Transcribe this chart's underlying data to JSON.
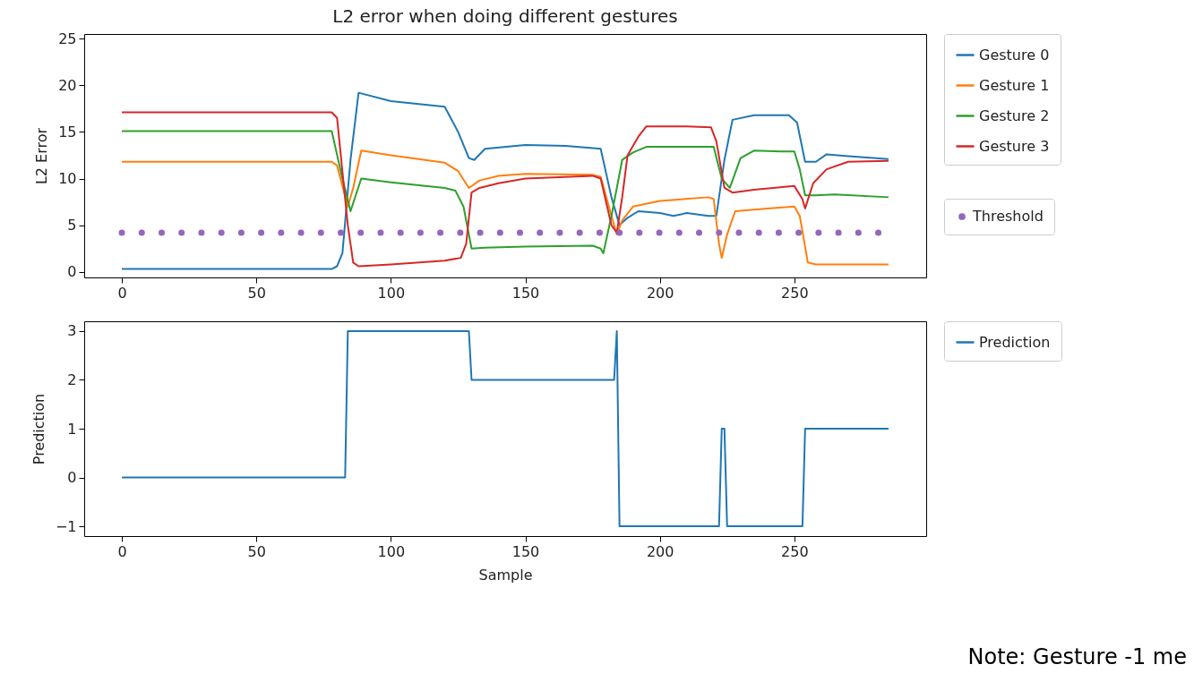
{
  "chart_data": [
    {
      "type": "line",
      "title": "L2 error when doing different gestures",
      "ylabel": "L2 Error",
      "xlim": [
        -14,
        299
      ],
      "ylim": [
        -0.6,
        25.5
      ],
      "xticks": [
        0,
        50,
        100,
        150,
        200,
        250
      ],
      "yticks": [
        0,
        5,
        10,
        15,
        20,
        25
      ],
      "grid": false,
      "legend": "right",
      "series": [
        {
          "name": "Gesture 0",
          "color": "#1f77b4",
          "x": [
            0,
            40,
            78,
            80,
            82,
            85,
            88,
            100,
            120,
            125,
            129,
            131,
            135,
            150,
            165,
            178,
            182,
            185,
            188,
            192,
            200,
            205,
            210,
            218,
            221,
            224,
            227,
            235,
            248,
            251,
            254,
            258,
            262,
            270,
            285
          ],
          "values": [
            0.3,
            0.3,
            0.3,
            0.6,
            2,
            12,
            19.2,
            18.3,
            17.7,
            15,
            12.2,
            12,
            13.2,
            13.6,
            13.5,
            13.2,
            8,
            5,
            5.8,
            6.5,
            6.3,
            6,
            6.3,
            6,
            6,
            12,
            16.3,
            16.8,
            16.8,
            16,
            11.8,
            11.8,
            12.6,
            12.4,
            12.1
          ]
        },
        {
          "name": "Gesture 1",
          "color": "#ff7f0e",
          "x": [
            0,
            40,
            78,
            80,
            84,
            86,
            89,
            100,
            120,
            125,
            129,
            133,
            140,
            150,
            175,
            178,
            182,
            184,
            186,
            190,
            200,
            218,
            220,
            222,
            223,
            225,
            228,
            240,
            250,
            252,
            255,
            258,
            285
          ],
          "values": [
            11.8,
            11.8,
            11.8,
            11.4,
            7,
            9,
            13,
            12.5,
            11.7,
            10.8,
            9,
            9.8,
            10.3,
            10.5,
            10.4,
            10.2,
            6,
            4,
            5.5,
            7,
            7.6,
            8,
            7.8,
            3,
            1.5,
            4,
            6.5,
            6.8,
            7,
            6,
            1,
            0.8,
            0.8
          ]
        },
        {
          "name": "Gesture 2",
          "color": "#2ca02c",
          "x": [
            0,
            40,
            78,
            82,
            85,
            89,
            100,
            120,
            124,
            127,
            129,
            130,
            135,
            150,
            175,
            178,
            179,
            182,
            186,
            190,
            195,
            210,
            220,
            223,
            226,
            230,
            235,
            245,
            250,
            252,
            254,
            258,
            265,
            285
          ],
          "values": [
            15.1,
            15.1,
            15.1,
            10,
            6.5,
            10,
            9.6,
            9,
            8.7,
            7,
            4,
            2.5,
            2.6,
            2.7,
            2.8,
            2.5,
            2,
            6,
            12,
            12.8,
            13.4,
            13.4,
            13.4,
            10,
            9,
            12.2,
            13,
            12.9,
            12.9,
            11,
            8.2,
            8.2,
            8.3,
            8
          ]
        },
        {
          "name": "Gesture 3",
          "color": "#d62728",
          "x": [
            0,
            40,
            78,
            80,
            84,
            86,
            88,
            100,
            120,
            126,
            128,
            130,
            133,
            140,
            150,
            175,
            178,
            182,
            184,
            186,
            188,
            192,
            195,
            210,
            219,
            221,
            224,
            227,
            235,
            250,
            253,
            254,
            257,
            262,
            270,
            285
          ],
          "values": [
            17.1,
            17.1,
            17.1,
            16.5,
            5,
            1,
            0.6,
            0.8,
            1.2,
            1.5,
            3,
            8.5,
            9,
            9.5,
            10,
            10.3,
            10,
            5,
            4.2,
            8,
            12.5,
            14.5,
            15.6,
            15.6,
            15.5,
            14,
            9,
            8.5,
            8.8,
            9.2,
            7.8,
            6.8,
            9.5,
            11,
            11.8,
            11.9
          ]
        },
        {
          "name": "Threshold",
          "type": "scatter",
          "marker": "circle",
          "color": "#9467bd",
          "x": [
            0,
            7.4,
            14.8,
            22.2,
            29.6,
            37,
            44.4,
            51.8,
            59.2,
            66.6,
            74,
            81.4,
            88.8,
            96.2,
            103.6,
            111,
            118.4,
            125.8,
            133.2,
            140.6,
            148,
            155.4,
            162.8,
            170.2,
            177.6,
            185,
            192.4,
            199.8,
            207.2,
            214.6,
            222,
            229.4,
            236.8,
            244.2,
            251.6,
            259,
            266.4,
            273.8,
            281.2
          ],
          "values": [
            4.2,
            4.2,
            4.2,
            4.2,
            4.2,
            4.2,
            4.2,
            4.2,
            4.2,
            4.2,
            4.2,
            4.2,
            4.2,
            4.2,
            4.2,
            4.2,
            4.2,
            4.2,
            4.2,
            4.2,
            4.2,
            4.2,
            4.2,
            4.2,
            4.2,
            4.2,
            4.2,
            4.2,
            4.2,
            4.2,
            4.2,
            4.2,
            4.2,
            4.2,
            4.2,
            4.2,
            4.2,
            4.2,
            4.2
          ]
        }
      ]
    },
    {
      "type": "line",
      "xlabel": "Sample",
      "ylabel": "Prediction",
      "xlim": [
        -14,
        299
      ],
      "ylim": [
        -1.2,
        3.2
      ],
      "xticks": [
        0,
        50,
        100,
        150,
        200,
        250
      ],
      "yticks": [
        {
          "value": -1,
          "label": "−1"
        },
        0,
        1,
        2,
        3
      ],
      "grid": false,
      "legend": "right",
      "annotations": [
        "Note: Gesture -1 me"
      ],
      "series": [
        {
          "name": "Prediction",
          "color": "#1f77b4",
          "x": [
            0,
            83,
            84,
            129,
            130,
            183,
            184,
            185,
            222,
            223,
            224,
            225,
            253,
            254,
            285
          ],
          "values": [
            0,
            0,
            3,
            3,
            2,
            2,
            3,
            -1,
            -1,
            1,
            1,
            -1,
            -1,
            1,
            1
          ]
        }
      ]
    }
  ]
}
